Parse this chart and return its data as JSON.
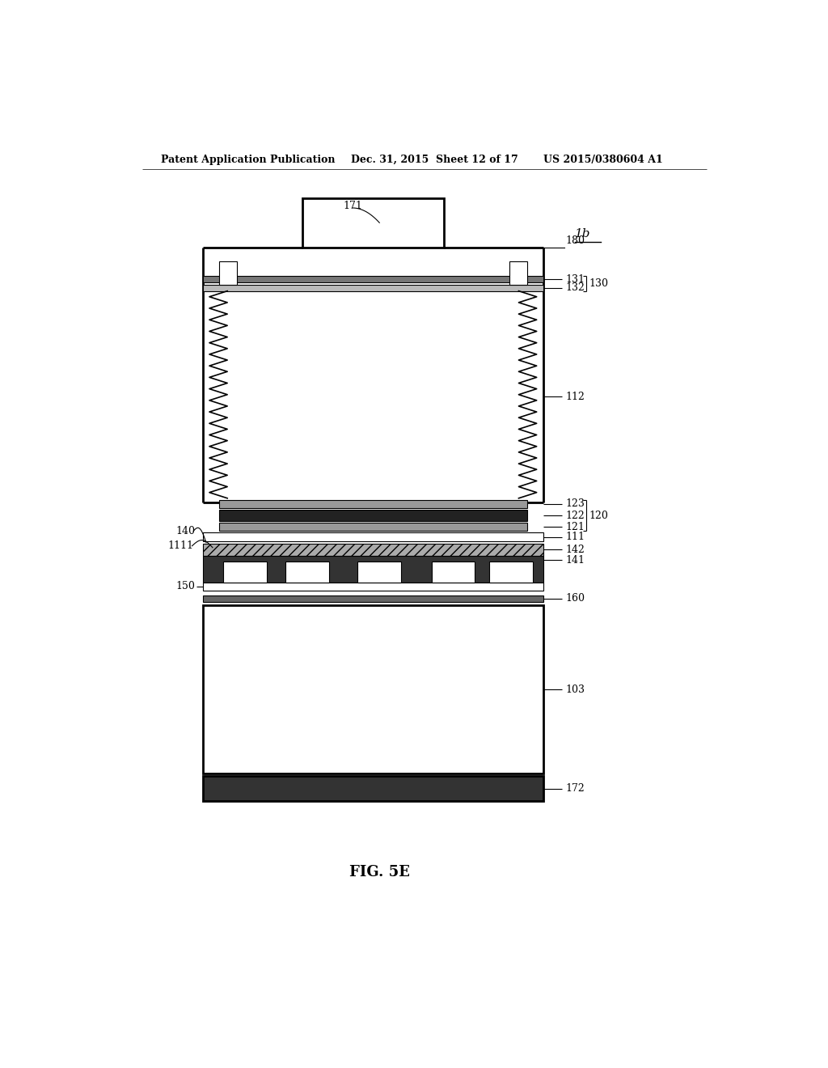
{
  "bg_color": "#ffffff",
  "line_color": "#000000",
  "header_left": "Patent Application Publication",
  "header_mid": "Dec. 31, 2015  Sheet 12 of 17",
  "header_right": "US 2015/0380604 A1",
  "fig_label": "FIG. 5E",
  "ref_label": "1b"
}
